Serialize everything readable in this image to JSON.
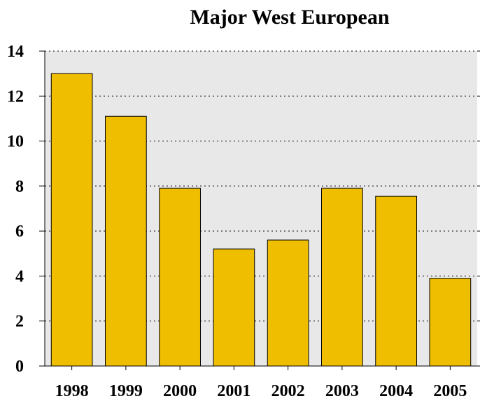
{
  "chart_data": {
    "type": "bar",
    "title": "Major West European",
    "xlabel": "",
    "ylabel": "",
    "categories": [
      "1998",
      "1999",
      "2000",
      "2001",
      "2002",
      "2003",
      "2004",
      "2005"
    ],
    "values": [
      13.0,
      11.1,
      7.9,
      5.2,
      5.6,
      7.9,
      7.55,
      3.9
    ],
    "ylim": [
      0,
      14
    ],
    "yticks": [
      "0",
      "2",
      "4",
      "6",
      "8",
      "10",
      "12",
      "14"
    ],
    "grid": true,
    "grid_style": "dotted-horizontal",
    "legend": "none",
    "colors": {
      "bar_fill": "#f0be00",
      "bar_stroke": "#000000",
      "plot_background": "#e8e8e8",
      "grid_line": "#000000"
    }
  }
}
